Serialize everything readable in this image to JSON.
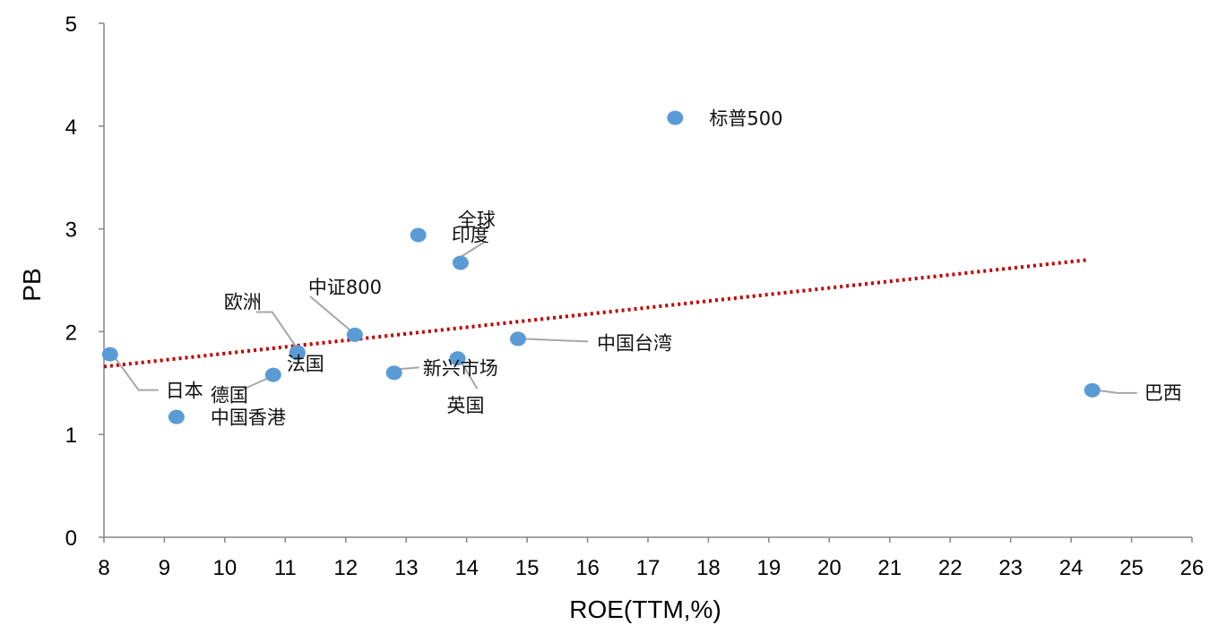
{
  "chart_data": {
    "type": "scatter",
    "title": "",
    "xlabel": "ROE(TTM,%)",
    "ylabel": "PB",
    "xlim": [
      8,
      26
    ],
    "ylim": [
      0,
      5
    ],
    "x_ticks": [
      "8",
      "9",
      "10",
      "11",
      "12",
      "13",
      "14",
      "15",
      "16",
      "17",
      "18",
      "19",
      "20",
      "21",
      "22",
      "23",
      "24",
      "25",
      "26"
    ],
    "y_ticks": [
      "0",
      "1",
      "2",
      "3",
      "4",
      "5"
    ],
    "grid": false,
    "legend": "none",
    "marker_color": "#5B9BD5",
    "trendline": {
      "type": "linear",
      "color": "#C00000",
      "style": "dotted",
      "x": [
        8.0,
        24.3
      ],
      "y": [
        1.66,
        2.7
      ]
    },
    "points": [
      {
        "label": "标普500",
        "x": 17.45,
        "y": 4.08
      },
      {
        "label": "全球",
        "x": 13.2,
        "y": 2.94
      },
      {
        "label": "印度",
        "x": 13.9,
        "y": 2.67
      },
      {
        "label": "中证800",
        "x": 12.15,
        "y": 1.97
      },
      {
        "label": "欧洲",
        "x": 11.2,
        "y": 1.79
      },
      {
        "label": "中国台湾",
        "x": 14.85,
        "y": 1.93
      },
      {
        "label": "日本",
        "x": 8.1,
        "y": 1.78
      },
      {
        "label": "法国",
        "x": 11.2,
        "y": 1.8
      },
      {
        "label": "新兴市场",
        "x": 12.8,
        "y": 1.6
      },
      {
        "label": "英国",
        "x": 13.85,
        "y": 1.74
      },
      {
        "label": "德国",
        "x": 10.8,
        "y": 1.58
      },
      {
        "label": "中国香港",
        "x": 9.2,
        "y": 1.17
      },
      {
        "label": "巴西",
        "x": 24.35,
        "y": 1.43
      }
    ]
  }
}
